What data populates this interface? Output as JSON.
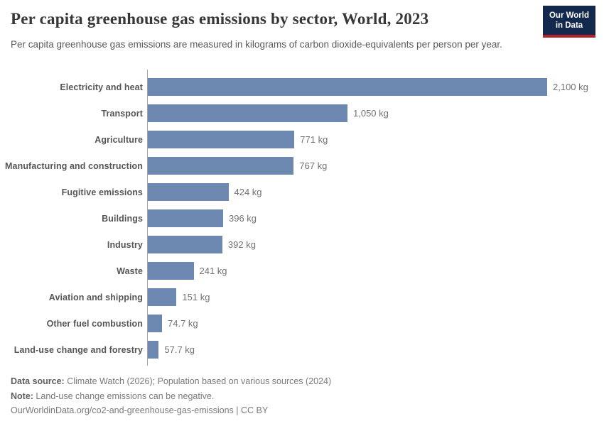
{
  "header": {
    "title": "Per capita greenhouse gas emissions by sector, World, 2023",
    "subtitle": "Per capita greenhouse gas emissions are measured in kilograms of carbon dioxide-equivalents per person per year.",
    "logo": {
      "line1": "Our World",
      "line2": "in Data",
      "bg_color": "#12284d",
      "accent_color": "#b2222b"
    }
  },
  "chart_data": {
    "type": "bar",
    "orientation": "horizontal",
    "title": "Per capita greenhouse gas emissions by sector, World, 2023",
    "subtitle": "Per capita greenhouse gas emissions are measured in kilograms of carbon dioxide-equivalents per person per year.",
    "unit": "kg",
    "xlabel": "",
    "ylabel": "",
    "xlim": [
      0,
      2100
    ],
    "grid": false,
    "bar_color": "#6c87b0",
    "categories": [
      "Electricity and heat",
      "Transport",
      "Agriculture",
      "Manufacturing and construction",
      "Fugitive emissions",
      "Buildings",
      "Industry",
      "Waste",
      "Aviation and shipping",
      "Other fuel combustion",
      "Land-use change and forestry"
    ],
    "values": [
      2100,
      1050,
      771,
      767,
      424,
      396,
      392,
      241,
      151,
      74.7,
      57.7
    ],
    "value_labels": [
      "2,100 kg",
      "1,050 kg",
      "771 kg",
      "767 kg",
      "424 kg",
      "396 kg",
      "392 kg",
      "241 kg",
      "151 kg",
      "74.7 kg",
      "57.7 kg"
    ]
  },
  "footer": {
    "data_source_label": "Data source:",
    "data_source_text": " Climate Watch (2026); Population based on various sources (2024)",
    "note_label": "Note:",
    "note_text": " Land-use change emissions can be negative.",
    "citation": "OurWorldinData.org/co2-and-greenhouse-gas-emissions | CC BY"
  }
}
